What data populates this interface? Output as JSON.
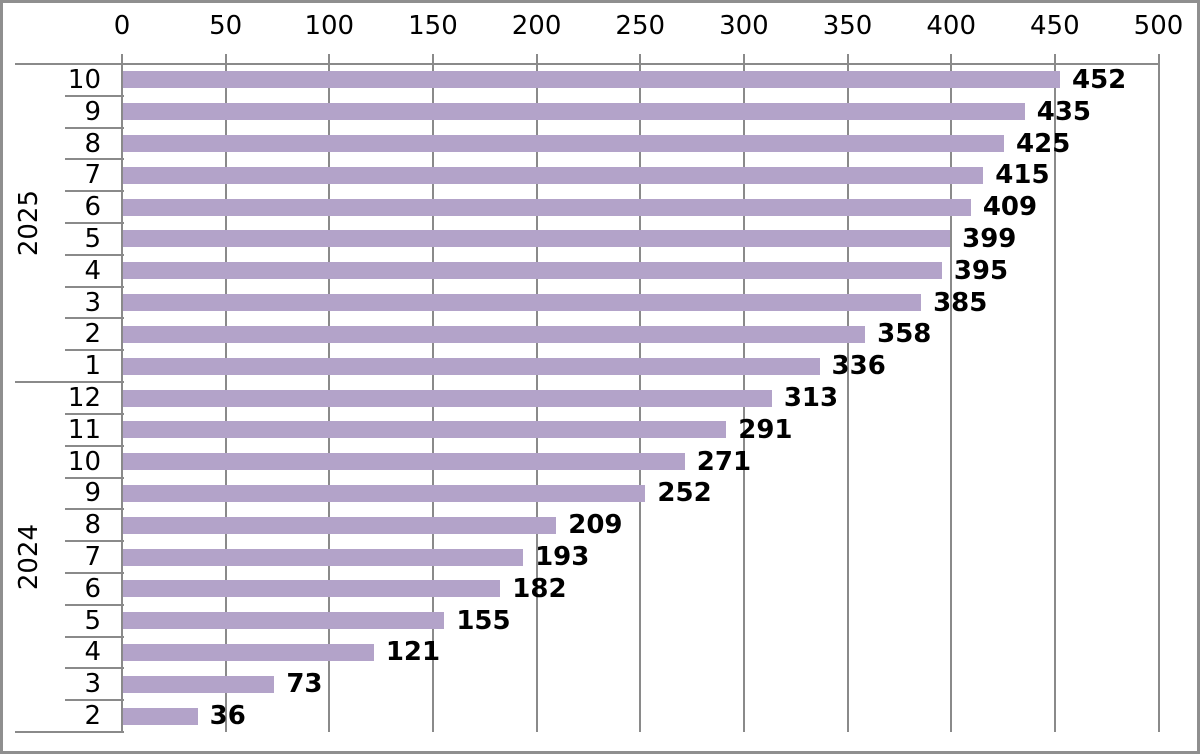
{
  "chart_data": {
    "type": "bar",
    "orientation": "horizontal",
    "title": "",
    "xlabel": "",
    "ylabel": "",
    "value_axis_position": "top",
    "axis": {
      "min": 0,
      "max": 500,
      "step": 50,
      "tick_labels": [
        "0",
        "50",
        "100",
        "150",
        "200",
        "250",
        "300",
        "350",
        "400",
        "450",
        "500"
      ]
    },
    "grid": true,
    "legend": false,
    "data_labels": true,
    "groups": [
      {
        "year": "2025",
        "categories": [
          "10",
          "9",
          "8",
          "7",
          "6",
          "5",
          "4",
          "3",
          "2",
          "1"
        ],
        "values": [
          452,
          435,
          425,
          415,
          409,
          399,
          395,
          385,
          358,
          336
        ]
      },
      {
        "year": "2024",
        "categories": [
          "12",
          "11",
          "10",
          "9",
          "8",
          "7",
          "6",
          "5",
          "4",
          "3",
          "2"
        ],
        "values": [
          313,
          291,
          271,
          252,
          209,
          193,
          182,
          155,
          121,
          73,
          36
        ]
      }
    ],
    "colors": {
      "bar": "#b3a3c9",
      "grid": "#8a8a8a",
      "axis_line": "#8a8a8a",
      "separator": "#8a8a8a",
      "text": "#000000",
      "frame_border": "#8f8f8f",
      "background": "#ffffff"
    }
  }
}
